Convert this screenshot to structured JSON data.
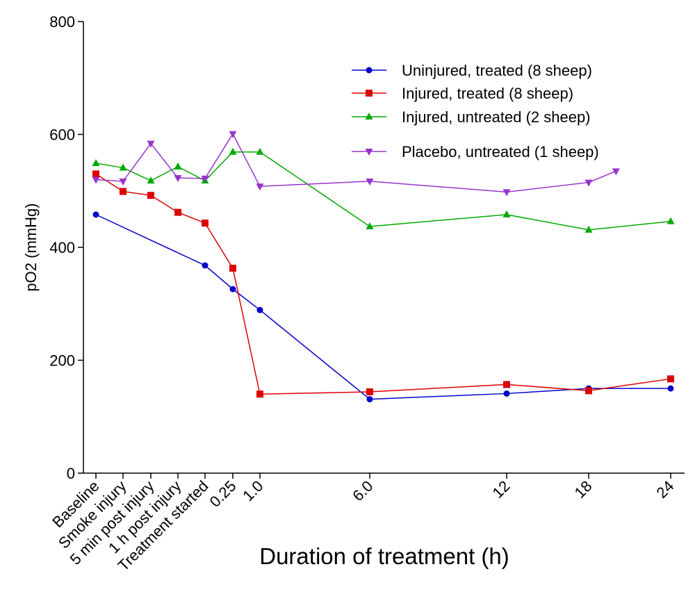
{
  "chart_data": {
    "type": "line",
    "xlabel": "Duration of treatment (h)",
    "ylabel": "pO2 (mmHg)",
    "ylim": [
      0,
      800
    ],
    "yticks": [
      0,
      200,
      400,
      600,
      800
    ],
    "categories": [
      "Baseline",
      "Smoke injury",
      "5 min post injury",
      "1 h post injury",
      "Treatment started",
      "0.25",
      "1.0",
      "6.0",
      "12",
      "18",
      "24"
    ],
    "series": [
      {
        "name": "Uninjured, treated (8 sheep)",
        "color": "#0000cc",
        "marker": "circle",
        "points": [
          {
            "x": "Baseline",
            "y": 458
          },
          {
            "x": "Treatment started",
            "y": 368
          },
          {
            "x": "0.25",
            "y": 326
          },
          {
            "x": "1.0",
            "y": 289
          },
          {
            "x": "6.0",
            "y": 131
          },
          {
            "x": "12",
            "y": 141
          },
          {
            "x": "18",
            "y": 150
          },
          {
            "x": "24",
            "y": 150
          }
        ]
      },
      {
        "name": "Injured, treated (8 sheep)",
        "color": "#dd0000",
        "marker": "square",
        "points": [
          {
            "x": "Baseline",
            "y": 530
          },
          {
            "x": "Smoke injury",
            "y": 499
          },
          {
            "x": "5 min post injury",
            "y": 492
          },
          {
            "x": "1 h post injury",
            "y": 462
          },
          {
            "x": "Treatment started",
            "y": 443
          },
          {
            "x": "0.25",
            "y": 363
          },
          {
            "x": "1.0",
            "y": 140
          },
          {
            "x": "6.0",
            "y": 144
          },
          {
            "x": "12",
            "y": 157
          },
          {
            "x": "18",
            "y": 146
          },
          {
            "x": "24",
            "y": 167
          }
        ]
      },
      {
        "name": "Injured, untreated (2 sheep)",
        "color": "#00aa00",
        "marker": "triangle-up",
        "points": [
          {
            "x": "Baseline",
            "y": 549
          },
          {
            "x": "Smoke injury",
            "y": 541
          },
          {
            "x": "5 min post injury",
            "y": 518
          },
          {
            "x": "1 h post injury",
            "y": 543
          },
          {
            "x": "Treatment started",
            "y": 518
          },
          {
            "x": "0.25",
            "y": 569
          },
          {
            "x": "1.0",
            "y": 569
          },
          {
            "x": "6.0",
            "y": 437
          },
          {
            "x": "12",
            "y": 458
          },
          {
            "x": "18",
            "y": 431
          },
          {
            "x": "24",
            "y": 446
          }
        ]
      },
      {
        "name": "Placebo, untreated (1 sheep)",
        "color": "#9933cc",
        "marker": "triangle-down",
        "points": [
          {
            "x": "Baseline",
            "y": 520
          },
          {
            "x": "Smoke injury",
            "y": 517
          },
          {
            "x": "5 min post injury",
            "y": 584
          },
          {
            "x": "1 h post injury",
            "y": 523
          },
          {
            "x": "Treatment started",
            "y": 522
          },
          {
            "x": "0.25",
            "y": 601
          },
          {
            "x": "1.0",
            "y": 508
          },
          {
            "x": "6.0",
            "y": 517
          },
          {
            "x": "12",
            "y": 498
          },
          {
            "x": "18",
            "y": 515
          },
          {
            "x": 20,
            "y": 535
          }
        ]
      }
    ],
    "legend_position": "top-right",
    "grid": false
  }
}
